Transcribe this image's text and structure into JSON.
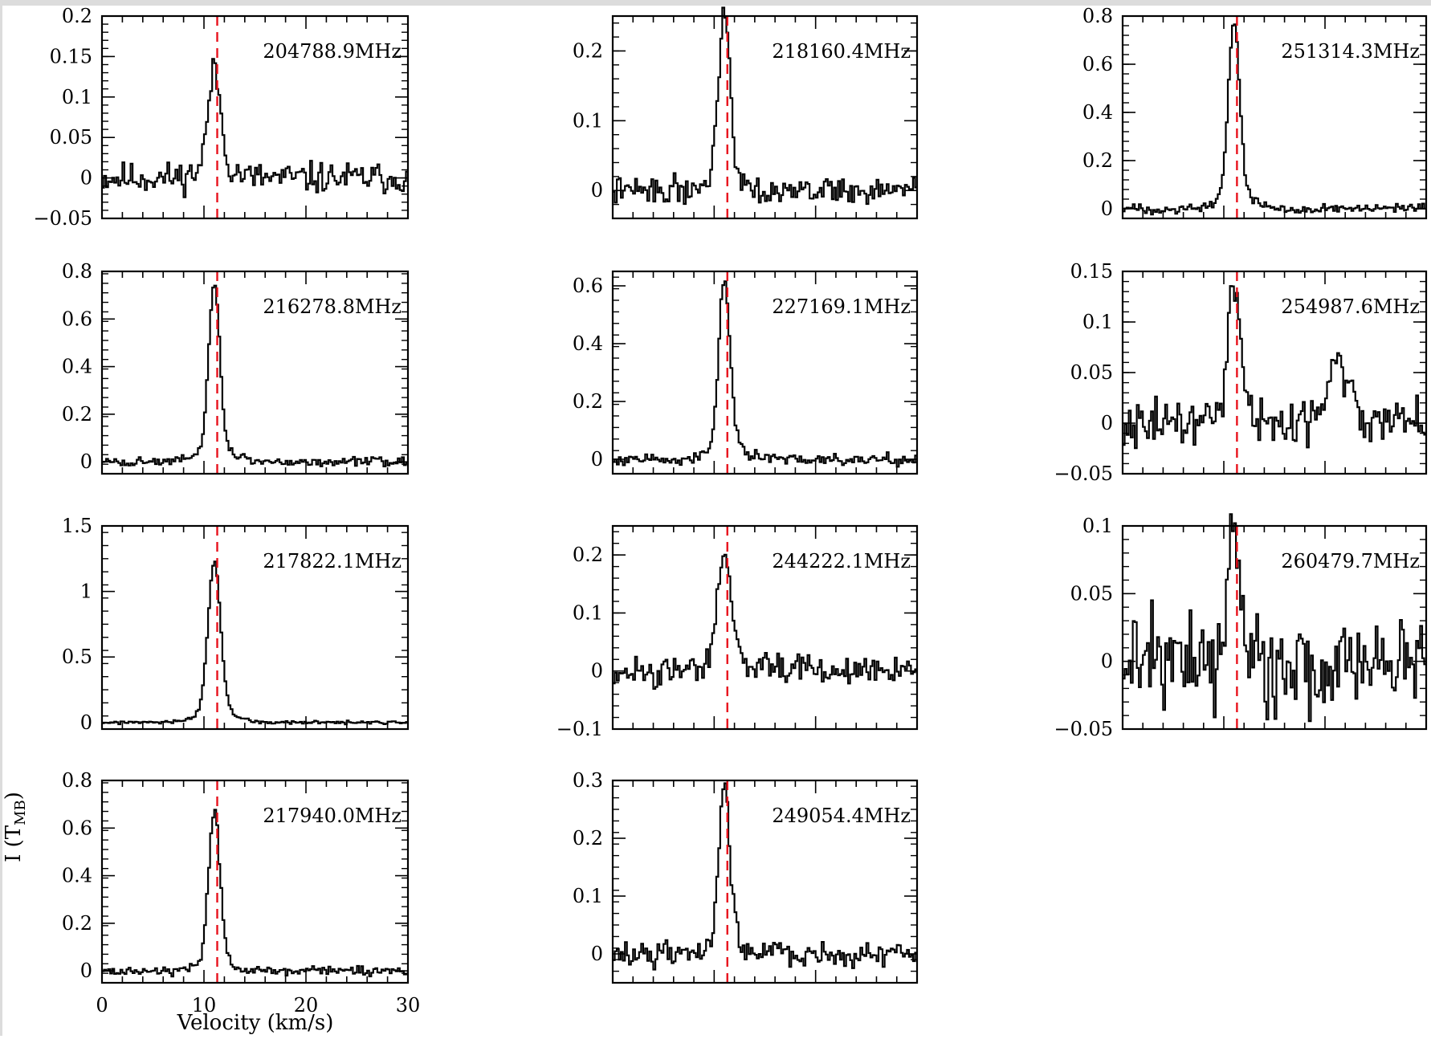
{
  "chart_data": {
    "type": "line",
    "layout": "spectral-line grid",
    "vlsr_marker": 11.3,
    "marker_color": "#e8121c",
    "line_color": "#000000",
    "x_axis": {
      "label": "Velocity (km/s)",
      "range": [
        0,
        30
      ],
      "ticks": [
        0,
        10,
        20,
        30
      ]
    },
    "y_axis": {
      "label": "I (T_MB)"
    },
    "panels": [
      {
        "label": "204788.9MHz",
        "ylim": [
          -0.05,
          0.2
        ],
        "yticks": [
          "−0.05",
          "0",
          "0.05",
          "0.1",
          "0.15",
          "0.2"
        ],
        "ytick_values": [
          -0.05,
          0,
          0.05,
          0.1,
          0.15,
          0.2
        ],
        "peak": 0.117,
        "peak_v": 11.0,
        "width": 0.6,
        "wing": 0.12,
        "noise": 0.012,
        "seed": 11
      },
      {
        "label": "218160.4MHz",
        "ylim": [
          -0.04,
          0.25
        ],
        "yticks": [
          "0",
          "0.1",
          "0.2"
        ],
        "ytick_values": [
          0,
          0.1,
          0.2
        ],
        "peak": 0.235,
        "peak_v": 11.0,
        "width": 0.55,
        "wing": 0.1,
        "noise": 0.012,
        "seed": 22
      },
      {
        "label": "251314.3MHz",
        "ylim": [
          -0.04,
          0.8
        ],
        "yticks": [
          "0",
          "0.2",
          "0.4",
          "0.6",
          "0.8"
        ],
        "ytick_values": [
          0,
          0.2,
          0.4,
          0.6,
          0.8
        ],
        "peak": 0.72,
        "peak_v": 11.0,
        "width": 0.55,
        "wing": 0.08,
        "noise": 0.012,
        "seed": 33
      },
      {
        "label": "216278.8MHz",
        "ylim": [
          -0.05,
          0.8
        ],
        "yticks": [
          "0",
          "0.2",
          "0.4",
          "0.6",
          "0.8"
        ],
        "ytick_values": [
          0,
          0.2,
          0.4,
          0.6,
          0.8
        ],
        "peak": 0.69,
        "peak_v": 11.0,
        "width": 0.55,
        "wing": 0.07,
        "noise": 0.012,
        "seed": 44
      },
      {
        "label": "227169.1MHz",
        "ylim": [
          -0.05,
          0.65
        ],
        "yticks": [
          "0",
          "0.2",
          "0.4",
          "0.6"
        ],
        "ytick_values": [
          0,
          0.2,
          0.4,
          0.6
        ],
        "peak": 0.57,
        "peak_v": 11.0,
        "width": 0.55,
        "wing": 0.08,
        "noise": 0.012,
        "seed": 55
      },
      {
        "label": "254987.6MHz",
        "ylim": [
          -0.05,
          0.15
        ],
        "yticks": [
          "−0.05",
          "0",
          "0.05",
          "0.1",
          "0.15"
        ],
        "ytick_values": [
          -0.05,
          0,
          0.05,
          0.1,
          0.15
        ],
        "peak": 0.133,
        "peak_v": 11.0,
        "width": 0.55,
        "wing": 0.12,
        "noise": 0.014,
        "seed": 66,
        "second_peak": {
          "v": 21.2,
          "amp": 0.06,
          "width": 1.2
        }
      },
      {
        "label": "217822.1MHz",
        "ylim": [
          -0.05,
          1.5
        ],
        "yticks": [
          "0",
          "0.5",
          "1",
          "1.5"
        ],
        "ytick_values": [
          0,
          0.5,
          1,
          1.5
        ],
        "peak": 1.12,
        "peak_v": 11.0,
        "width": 0.6,
        "wing": 0.09,
        "noise": 0.008,
        "seed": 77
      },
      {
        "label": "244222.1MHz",
        "ylim": [
          -0.1,
          0.25
        ],
        "yticks": [
          "−0.1",
          "0",
          "0.1",
          "0.2"
        ],
        "ytick_values": [
          -0.1,
          0,
          0.1,
          0.2
        ],
        "peak": 0.19,
        "peak_v": 11.0,
        "width": 0.6,
        "wing": 0.12,
        "noise": 0.015,
        "seed": 88
      },
      {
        "label": "260479.7MHz",
        "ylim": [
          -0.05,
          0.1
        ],
        "yticks": [
          "−0.05",
          "0",
          "0.05",
          "0.1"
        ],
        "ytick_values": [
          -0.05,
          0,
          0.05,
          0.1
        ],
        "peak": 0.085,
        "peak_v": 11.0,
        "width": 0.55,
        "wing": 0.12,
        "noise": 0.022,
        "seed": 99
      },
      {
        "label": "217940.0MHz",
        "ylim": [
          -0.05,
          0.8
        ],
        "yticks": [
          "0",
          "0.2",
          "0.4",
          "0.6",
          "0.8"
        ],
        "ytick_values": [
          0,
          0.2,
          0.4,
          0.6,
          0.8
        ],
        "peak": 0.61,
        "peak_v": 11.0,
        "width": 0.55,
        "wing": 0.08,
        "noise": 0.012,
        "seed": 111
      },
      {
        "label": "249054.4MHz",
        "ylim": [
          -0.05,
          0.3
        ],
        "yticks": [
          "0",
          "0.1",
          "0.2",
          "0.3"
        ],
        "ytick_values": [
          0,
          0.1,
          0.2,
          0.3
        ],
        "peak": 0.255,
        "peak_v": 11.0,
        "width": 0.55,
        "wing": 0.1,
        "noise": 0.013,
        "seed": 122
      }
    ]
  }
}
